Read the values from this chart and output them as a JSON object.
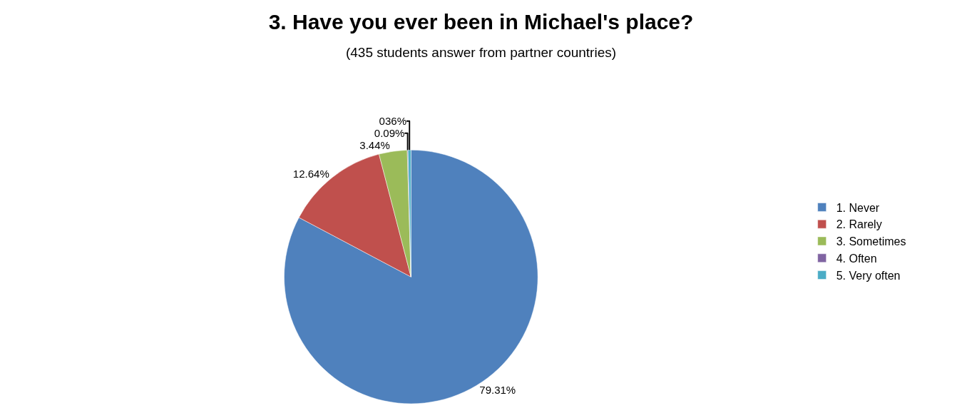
{
  "chart_data": {
    "type": "pie",
    "title": "3. Have you ever been in Michael's place?",
    "subtitle": "(435 students answer from partner countries)",
    "categories": [
      "1. Never",
      "2. Rarely",
      "3. Sometimes",
      "4. Often",
      "5. Very often"
    ],
    "values": [
      79.31,
      12.64,
      3.44,
      0.09,
      0.36
    ],
    "value_labels": [
      "79.31%",
      "12.64%",
      "3.44%",
      "0.09%",
      "036%"
    ],
    "colors": [
      "#4f81bd",
      "#c0504d",
      "#9bbb59",
      "#8064a2",
      "#4bacc6"
    ],
    "legend": "right"
  }
}
